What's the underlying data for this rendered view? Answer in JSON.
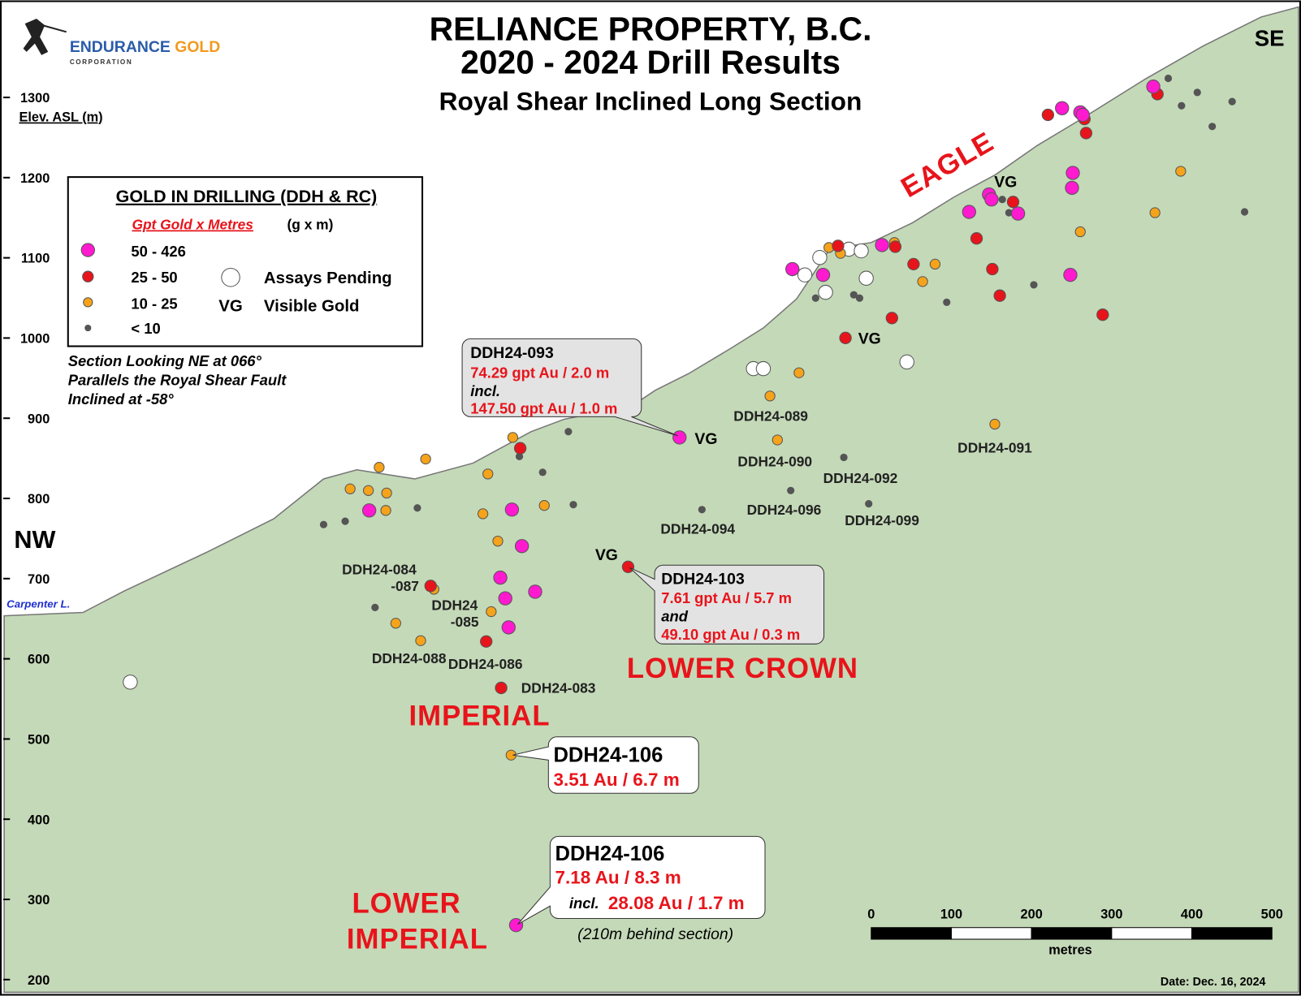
{
  "header": {
    "title_line1": "RELIANCE PROPERTY, B.C.",
    "title_line2": "2020 - 2024 Drill Results",
    "subtitle": "Royal Shear Inclined Long Section"
  },
  "logo": {
    "name_part1": "ENDURANCE",
    "name_part2": "GOLD",
    "sub": "CORPORATION"
  },
  "directions": {
    "left": "NW",
    "right": "SE"
  },
  "elevation_axis": {
    "label": "Elev. ASL (m)",
    "ticks": [
      "1300",
      "1200",
      "1100",
      "1000",
      "900",
      "800",
      "700",
      "600",
      "500",
      "400",
      "300",
      "200"
    ]
  },
  "legend": {
    "title": "GOLD IN DRILLING (DDH & RC)",
    "unit_label": "Gpt Gold x Metres",
    "unit": "(g x m)",
    "classes": [
      "50 - 426",
      "25 - 50",
      "10 - 25",
      "< 10"
    ],
    "pending": "Assays Pending",
    "vg_symbol": "VG",
    "vg_text": "Visible Gold"
  },
  "section_note": [
    "Section Looking NE at 066°",
    "Parallels the Royal Shear Fault",
    "Inclined at -58°"
  ],
  "zones": {
    "eagle": "EAGLE",
    "lower_crown": "LOWER CROWN",
    "imperial": "IMPERIAL",
    "lower_imperial": [
      "LOWER",
      "IMPERIAL"
    ]
  },
  "lake": "Carpenter L.",
  "vg_labels": [
    "VG",
    "VG",
    "VG",
    "VG"
  ],
  "hole_labels": [
    "DDH24-089",
    "DDH24-090",
    "DDH24-091",
    "DDH24-092",
    "DDH24-096",
    "DDH24-099",
    "DDH24-094",
    "DDH24-084",
    "-087",
    "DDH24",
    "-085",
    "DDH24-088",
    "DDH24-086",
    "DDH24-083"
  ],
  "callouts": [
    {
      "hole": "DDH24-093",
      "lines": [
        "74.29 gpt Au / 2.0 m",
        "incl.",
        "147.50 gpt Au / 1.0 m"
      ]
    },
    {
      "hole": "DDH24-103",
      "lines": [
        "7.61 gpt Au / 5.7 m",
        "and",
        "49.10 gpt Au / 0.3 m"
      ]
    },
    {
      "hole": "DDH24-106",
      "lines": [
        "3.51 Au / 6.7 m"
      ]
    },
    {
      "hole": "DDH24-106",
      "lines": [
        "7.18 Au / 8.3 m",
        "incl.",
        "28.08 Au / 1.7 m"
      ],
      "note": "(210m behind section)"
    }
  ],
  "scale_bar": {
    "ticks": [
      "0",
      "100",
      "200",
      "300",
      "400",
      "500"
    ],
    "unit": "metres"
  },
  "date": "Date:  Dec. 16, 2024"
}
